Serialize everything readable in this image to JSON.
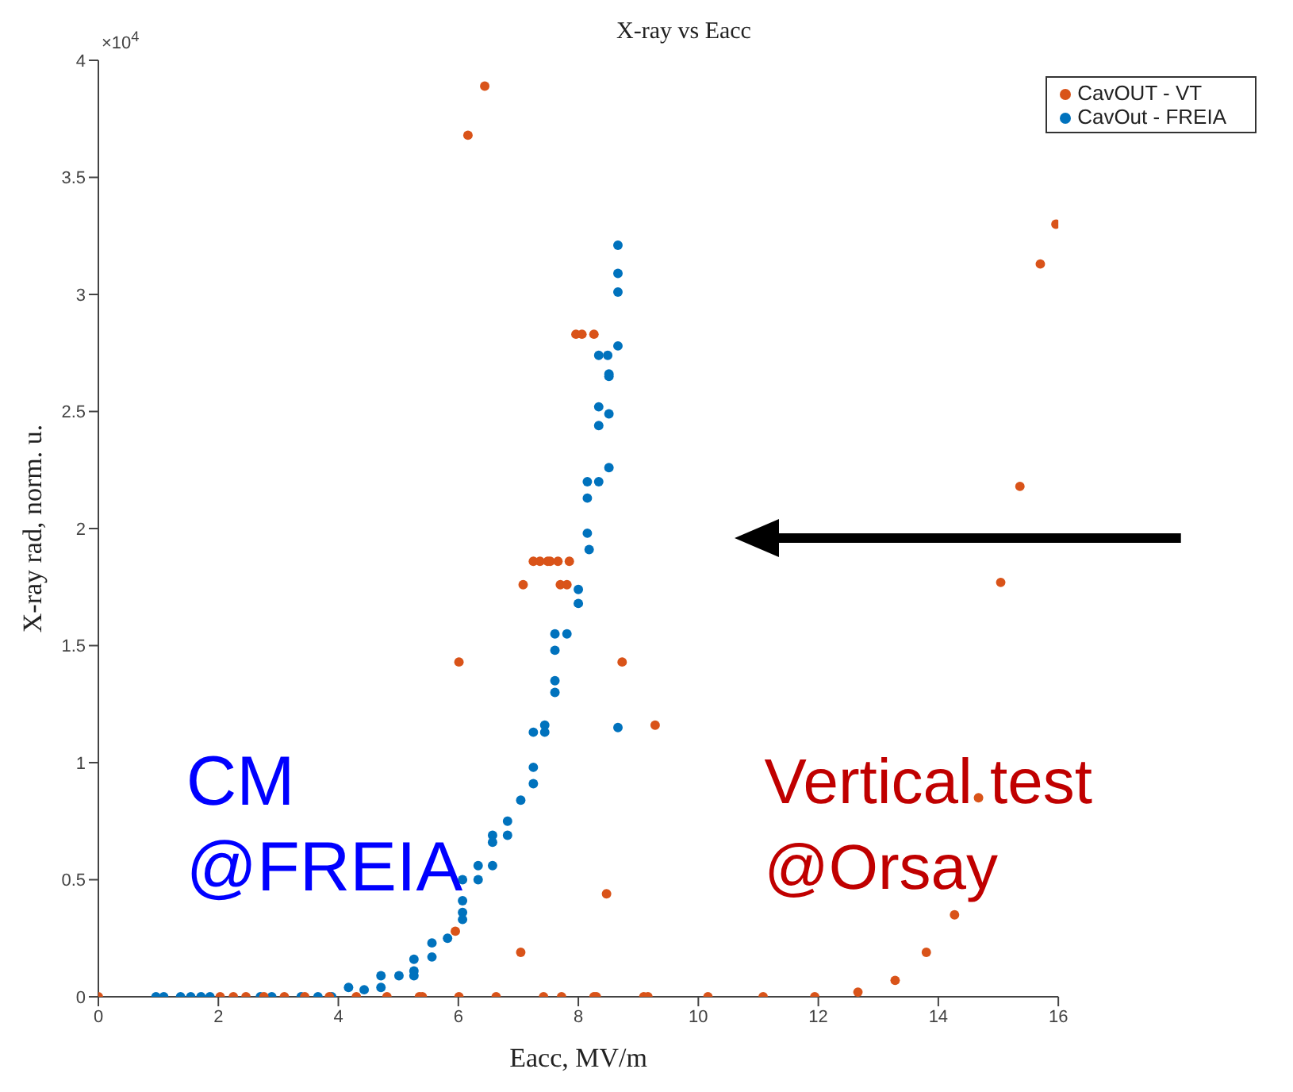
{
  "chart_data": {
    "type": "scatter",
    "title": "X-ray vs Eacc",
    "xlabel": "Eacc, MV/m",
    "ylabel": "X-ray rad, norm. u.",
    "xlim": [
      0,
      16
    ],
    "xticks": [
      0,
      2,
      4,
      6,
      8,
      10,
      12,
      14,
      16
    ],
    "ylim": [
      0,
      4
    ],
    "yticks": [
      0,
      0.5,
      1,
      1.5,
      2,
      2.5,
      3,
      3.5,
      4
    ],
    "marker": "circle",
    "grid": false,
    "legend": "top right",
    "annotations": [
      "×10$^{4}$",
      "CM\n@FREIA",
      "Vertical test\n@Orsay"
    ],
    "series": [
      {
        "name": "CavOut - FREIA",
        "color": "#0072bd",
        "x": [
          0.96,
          1.09,
          1.37,
          1.54,
          1.71,
          1.86,
          2.7,
          2.89,
          3.38,
          3.66,
          3.89,
          4.17,
          4.43,
          4.71,
          4.71,
          5.01,
          5.26,
          5.26,
          5.26,
          5.56,
          5.56,
          5.82,
          6.07,
          6.07,
          6.07,
          6.07,
          6.33,
          6.33,
          6.57,
          6.57,
          6.57,
          6.82,
          6.82,
          7.04,
          7.25,
          7.25,
          7.25,
          7.44,
          7.44,
          7.61,
          7.61,
          7.61,
          7.61,
          7.81,
          8.0,
          8.0,
          8.15,
          8.15,
          8.15,
          8.18,
          8.34,
          8.34,
          8.34,
          8.34,
          8.49,
          8.51,
          8.51,
          8.51,
          8.51,
          8.66,
          8.66,
          8.66,
          8.66,
          8.66
        ],
        "values": [
          0,
          0,
          0,
          0,
          0,
          0,
          0,
          0,
          0,
          0,
          0,
          0.04,
          0.03,
          0.09,
          0.04,
          0.09,
          0.16,
          0.11,
          0.09,
          0.23,
          0.17,
          0.25,
          0.5,
          0.41,
          0.36,
          0.33,
          0.56,
          0.5,
          0.69,
          0.66,
          0.56,
          0.75,
          0.69,
          0.84,
          0.98,
          0.91,
          1.13,
          1.16,
          1.13,
          1.3,
          1.35,
          1.48,
          1.55,
          1.55,
          1.68,
          1.74,
          1.98,
          2.13,
          2.2,
          1.91,
          2.2,
          2.44,
          2.52,
          2.74,
          2.74,
          2.26,
          2.49,
          2.65,
          2.66,
          1.15,
          2.78,
          3.01,
          3.09,
          3.21
        ]
      },
      {
        "name": "CavOUT - VT",
        "color": "#d95319",
        "x": [
          0,
          2.03,
          2.25,
          2.46,
          2.76,
          3.1,
          3.44,
          3.85,
          4.3,
          4.81,
          5.35,
          5.4,
          6.01,
          6.63,
          7.42,
          7.72,
          8.26,
          5.95,
          7.04,
          8.47,
          6.01,
          8.73,
          9.28,
          7.08,
          7.7,
          7.81,
          7.25,
          7.36,
          7.49,
          7.53,
          7.66,
          7.85,
          7.96,
          8.06,
          8.26,
          6.44,
          6.16,
          15.96,
          14.67,
          14.27,
          13.8,
          13.28,
          12.66,
          8.3,
          9.09,
          9.16,
          10.16,
          11.08,
          11.94,
          15.36,
          15.04,
          15.7
        ],
        "values": [
          0,
          0,
          0,
          0,
          0,
          0,
          0,
          0,
          0,
          0,
          0,
          0,
          0,
          0,
          0,
          0,
          0,
          0.28,
          0.19,
          0.44,
          1.43,
          1.43,
          1.16,
          1.76,
          1.76,
          1.76,
          1.86,
          1.86,
          1.86,
          1.86,
          1.86,
          1.86,
          2.83,
          2.83,
          2.83,
          3.89,
          3.68,
          3.3,
          0.85,
          0.35,
          0.19,
          0.07,
          0.02,
          0,
          0,
          0,
          0,
          0,
          0,
          2.18,
          1.77,
          3.13
        ]
      }
    ]
  }
}
